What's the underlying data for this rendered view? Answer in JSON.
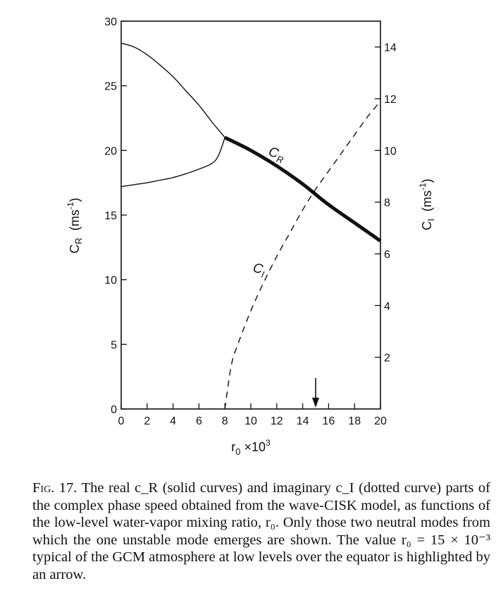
{
  "chart_data": {
    "type": "line",
    "xlabel": "r₀ ×10³",
    "ylabel_left": "C_R  (ms⁻¹)",
    "ylabel_right": "C_I  (ms⁻¹)",
    "xlim": [
      0,
      20
    ],
    "ylim_left": [
      0,
      30
    ],
    "ylim_right": [
      0,
      15
    ],
    "x_ticks": [
      0,
      2,
      4,
      6,
      8,
      10,
      12,
      14,
      16,
      18,
      20
    ],
    "y_left_ticks": [
      0,
      5,
      10,
      15,
      20,
      25,
      30
    ],
    "y_right_ticks": [
      2,
      4,
      6,
      8,
      10,
      12,
      14
    ],
    "grid": false,
    "series": [
      {
        "name": "C_R",
        "axis": "left",
        "style": "solid",
        "x": [
          0,
          1,
          2,
          3,
          4,
          5,
          6,
          7,
          7.5,
          8
        ],
        "y": [
          28.3,
          28.0,
          27.4,
          26.6,
          25.7,
          24.6,
          23.5,
          22.2,
          21.6,
          21.0
        ]
      },
      {
        "name": "C_R",
        "axis": "left",
        "style": "solid",
        "x": [
          0,
          1,
          2,
          3,
          4,
          5,
          6,
          7,
          7.5,
          8
        ],
        "y": [
          17.2,
          17.35,
          17.5,
          17.7,
          17.9,
          18.2,
          18.55,
          19.0,
          19.6,
          21.0
        ]
      },
      {
        "name": "C_R",
        "axis": "left",
        "style": "bold",
        "x": [
          8,
          10,
          12,
          14,
          16,
          18,
          20
        ],
        "y": [
          21.0,
          20.0,
          18.8,
          17.4,
          15.8,
          14.4,
          13.0
        ]
      },
      {
        "name": "C_I",
        "axis": "right",
        "style": "dashed",
        "x": [
          8,
          8.5,
          9,
          10,
          11,
          12,
          13,
          14,
          15,
          16,
          17,
          18,
          19,
          20
        ],
        "y": [
          0,
          1.7,
          2.5,
          3.8,
          4.9,
          5.9,
          6.8,
          7.7,
          8.5,
          9.2,
          9.9,
          10.6,
          11.3,
          11.9
        ]
      }
    ],
    "annotations": [
      {
        "text": "C_R",
        "x": 12.2,
        "y": 20.5,
        "axis": "left"
      },
      {
        "text": "C_I",
        "x": 11.0,
        "y": 5.3,
        "axis": "right"
      },
      {
        "type": "arrow",
        "x": 15,
        "direction": "down"
      }
    ]
  },
  "labels": {
    "cr_main": "C",
    "cr_sub": "R",
    "ci_main": "C",
    "ci_sub": "I",
    "ylabel_left_main": "C",
    "ylabel_left_sub": "R",
    "ylabel_left_unit": "(ms",
    "ylabel_left_exp": "-1",
    "ylabel_left_close": ")",
    "ylabel_right_main": "C",
    "ylabel_right_sub": "I",
    "ylabel_right_unit": "(ms",
    "ylabel_right_exp": "-1",
    "ylabel_right_close": ")",
    "xlabel_main": "r",
    "xlabel_sub": "0",
    "xlabel_mid": " ×10",
    "xlabel_exp": "3"
  },
  "caption": {
    "label": "Fig. 17.",
    "text": " The real c_R (solid curves) and imaginary c_I (dotted curve) parts of the complex phase speed obtained from the wave-CISK model, as functions of the low-level water-vapor mixing ratio, r₀. Only those two neutral modes from which the one unstable mode emerges are shown. The value r₀ = 15 × 10⁻³ typical of the GCM atmosphere at low levels over the equator is highlighted by an arrow."
  }
}
